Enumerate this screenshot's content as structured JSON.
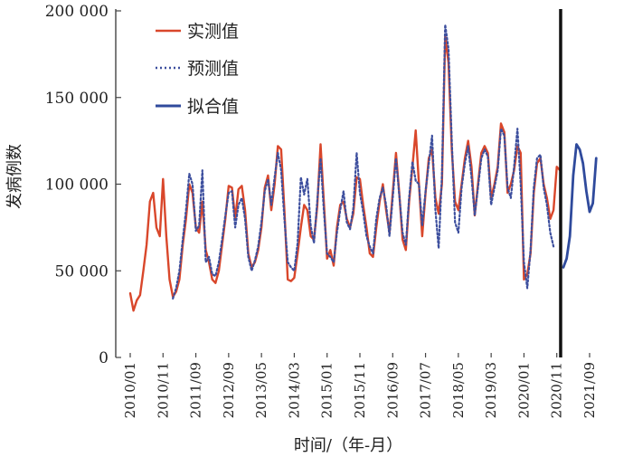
{
  "chart_data": {
    "type": "line",
    "ylabel": "发病例数",
    "xlabel": "时间/（年-月）",
    "ylim": [
      0,
      200000
    ],
    "y_ticks": [
      0,
      50000,
      100000,
      150000,
      200000
    ],
    "y_tick_labels": [
      "0",
      "50 000",
      "100 000",
      "150 000",
      "200 000"
    ],
    "x_tick_labels": [
      "2010/01",
      "2010/11",
      "2011/09",
      "2012/09",
      "2013/05",
      "2014/03",
      "2015/01",
      "2015/11",
      "2016/09",
      "2017/07",
      "2018/05",
      "2019/03",
      "2020/01",
      "2020/11",
      "2021/09"
    ],
    "x_tick_indices": [
      0,
      10,
      20,
      30,
      40,
      50,
      60,
      70,
      80,
      90,
      100,
      110,
      120,
      130,
      140
    ],
    "x_count": 151,
    "divider_index": 132,
    "legend": [
      "实测值",
      "预测值",
      "拟合值"
    ],
    "colors": {
      "actual": "#d9472b",
      "predicted": "#3d4f9e",
      "fitted": "#2f4a9c",
      "divider": "#111111"
    },
    "series": [
      {
        "name": "实测值",
        "style": "solid",
        "points": [
          [
            0,
            37000
          ],
          [
            1,
            27000
          ],
          [
            2,
            33000
          ],
          [
            3,
            36000
          ],
          [
            4,
            50000
          ],
          [
            5,
            65000
          ],
          [
            6,
            90000
          ],
          [
            7,
            95000
          ],
          [
            8,
            75000
          ],
          [
            9,
            70000
          ],
          [
            10,
            103000
          ],
          [
            11,
            70000
          ],
          [
            12,
            45000
          ],
          [
            13,
            35000
          ],
          [
            14,
            38000
          ],
          [
            15,
            45000
          ],
          [
            16,
            65000
          ],
          [
            17,
            80000
          ],
          [
            18,
            100000
          ],
          [
            19,
            95000
          ],
          [
            20,
            75000
          ],
          [
            21,
            72000
          ],
          [
            22,
            90000
          ],
          [
            23,
            62000
          ],
          [
            24,
            55000
          ],
          [
            25,
            45000
          ],
          [
            26,
            43000
          ],
          [
            27,
            50000
          ],
          [
            28,
            65000
          ],
          [
            29,
            80000
          ],
          [
            30,
            99000
          ],
          [
            31,
            98000
          ],
          [
            32,
            80000
          ],
          [
            33,
            97000
          ],
          [
            34,
            99000
          ],
          [
            35,
            85000
          ],
          [
            36,
            60000
          ],
          [
            37,
            52000
          ],
          [
            38,
            55000
          ],
          [
            39,
            62000
          ],
          [
            40,
            75000
          ],
          [
            41,
            98000
          ],
          [
            42,
            105000
          ],
          [
            43,
            85000
          ],
          [
            44,
            100000
          ],
          [
            45,
            122000
          ],
          [
            46,
            120000
          ],
          [
            47,
            85000
          ],
          [
            48,
            45000
          ],
          [
            49,
            44000
          ],
          [
            50,
            46000
          ],
          [
            51,
            60000
          ],
          [
            52,
            75000
          ],
          [
            53,
            88000
          ],
          [
            54,
            85000
          ],
          [
            55,
            70000
          ],
          [
            56,
            68000
          ],
          [
            57,
            87000
          ],
          [
            58,
            123000
          ],
          [
            59,
            90000
          ],
          [
            60,
            57000
          ],
          [
            61,
            62000
          ],
          [
            62,
            53000
          ],
          [
            63,
            75000
          ],
          [
            64,
            88000
          ],
          [
            65,
            90000
          ],
          [
            66,
            80000
          ],
          [
            67,
            75000
          ],
          [
            68,
            83000
          ],
          [
            69,
            104000
          ],
          [
            70,
            103000
          ],
          [
            71,
            88000
          ],
          [
            72,
            75000
          ],
          [
            73,
            60000
          ],
          [
            74,
            58000
          ],
          [
            75,
            75000
          ],
          [
            76,
            90000
          ],
          [
            77,
            100000
          ],
          [
            78,
            85000
          ],
          [
            79,
            72000
          ],
          [
            80,
            95000
          ],
          [
            81,
            118000
          ],
          [
            82,
            95000
          ],
          [
            83,
            68000
          ],
          [
            84,
            62000
          ],
          [
            85,
            90000
          ],
          [
            86,
            110000
          ],
          [
            87,
            131000
          ],
          [
            88,
            100000
          ],
          [
            89,
            70000
          ],
          [
            90,
            95000
          ],
          [
            91,
            115000
          ],
          [
            92,
            120000
          ],
          [
            93,
            92000
          ],
          [
            94,
            83000
          ],
          [
            95,
            100000
          ],
          [
            96,
            185000
          ],
          [
            97,
            170000
          ],
          [
            98,
            120000
          ],
          [
            99,
            90000
          ],
          [
            100,
            85000
          ],
          [
            101,
            100000
          ],
          [
            102,
            115000
          ],
          [
            103,
            125000
          ],
          [
            104,
            110000
          ],
          [
            105,
            82000
          ],
          [
            106,
            100000
          ],
          [
            107,
            118000
          ],
          [
            108,
            122000
          ],
          [
            109,
            118000
          ],
          [
            110,
            92000
          ],
          [
            111,
            100000
          ],
          [
            112,
            110000
          ],
          [
            113,
            135000
          ],
          [
            114,
            130000
          ],
          [
            115,
            95000
          ],
          [
            116,
            100000
          ],
          [
            117,
            108000
          ],
          [
            118,
            122000
          ],
          [
            119,
            118000
          ],
          [
            120,
            45000
          ],
          [
            121,
            48000
          ],
          [
            122,
            60000
          ],
          [
            123,
            95000
          ],
          [
            124,
            112000
          ],
          [
            125,
            115000
          ],
          [
            126,
            100000
          ],
          [
            127,
            92000
          ],
          [
            128,
            80000
          ],
          [
            129,
            85000
          ],
          [
            130,
            110000
          ],
          [
            131,
            108000
          ]
        ]
      },
      {
        "name": "预测值",
        "style": "dotted",
        "points": [
          [
            13,
            34000
          ],
          [
            14,
            40000
          ],
          [
            15,
            50000
          ],
          [
            16,
            68000
          ],
          [
            17,
            85000
          ],
          [
            18,
            106000
          ],
          [
            19,
            100000
          ],
          [
            20,
            73000
          ],
          [
            21,
            76000
          ],
          [
            22,
            108000
          ],
          [
            23,
            55000
          ],
          [
            24,
            58000
          ],
          [
            25,
            48000
          ],
          [
            26,
            47000
          ],
          [
            27,
            55000
          ],
          [
            28,
            68000
          ],
          [
            29,
            82000
          ],
          [
            30,
            95000
          ],
          [
            31,
            96000
          ],
          [
            32,
            75000
          ],
          [
            33,
            88000
          ],
          [
            34,
            92000
          ],
          [
            35,
            80000
          ],
          [
            36,
            58000
          ],
          [
            37,
            50000
          ],
          [
            38,
            56000
          ],
          [
            39,
            64000
          ],
          [
            40,
            78000
          ],
          [
            41,
            96000
          ],
          [
            42,
            103000
          ],
          [
            43,
            88000
          ],
          [
            44,
            104000
          ],
          [
            45,
            118000
          ],
          [
            46,
            108000
          ],
          [
            47,
            80000
          ],
          [
            48,
            55000
          ],
          [
            49,
            52000
          ],
          [
            50,
            50000
          ],
          [
            51,
            66000
          ],
          [
            52,
            104000
          ],
          [
            53,
            94000
          ],
          [
            54,
            103000
          ],
          [
            55,
            76000
          ],
          [
            56,
            66000
          ],
          [
            57,
            90000
          ],
          [
            58,
            115000
          ],
          [
            59,
            85000
          ],
          [
            60,
            60000
          ],
          [
            61,
            58000
          ],
          [
            62,
            55000
          ],
          [
            63,
            72000
          ],
          [
            64,
            85000
          ],
          [
            65,
            96000
          ],
          [
            66,
            78000
          ],
          [
            67,
            74000
          ],
          [
            68,
            86000
          ],
          [
            69,
            118000
          ],
          [
            70,
            95000
          ],
          [
            71,
            84000
          ],
          [
            72,
            70000
          ],
          [
            73,
            64000
          ],
          [
            74,
            60000
          ],
          [
            75,
            80000
          ],
          [
            76,
            92000
          ],
          [
            77,
            98000
          ],
          [
            78,
            88000
          ],
          [
            79,
            70000
          ],
          [
            80,
            92000
          ],
          [
            81,
            115000
          ],
          [
            82,
            94000
          ],
          [
            83,
            72000
          ],
          [
            84,
            65000
          ],
          [
            85,
            92000
          ],
          [
            86,
            113000
          ],
          [
            87,
            102000
          ],
          [
            88,
            100000
          ],
          [
            89,
            76000
          ],
          [
            90,
            96000
          ],
          [
            91,
            112000
          ],
          [
            92,
            128000
          ],
          [
            93,
            85000
          ],
          [
            94,
            63000
          ],
          [
            95,
            105000
          ],
          [
            96,
            192000
          ],
          [
            97,
            178000
          ],
          [
            98,
            125000
          ],
          [
            99,
            78000
          ],
          [
            100,
            72000
          ],
          [
            101,
            98000
          ],
          [
            102,
            112000
          ],
          [
            103,
            122000
          ],
          [
            104,
            104000
          ],
          [
            105,
            82000
          ],
          [
            106,
            98000
          ],
          [
            107,
            115000
          ],
          [
            108,
            120000
          ],
          [
            109,
            116000
          ],
          [
            110,
            88000
          ],
          [
            111,
            98000
          ],
          [
            112,
            108000
          ],
          [
            113,
            132000
          ],
          [
            114,
            128000
          ],
          [
            115,
            98000
          ],
          [
            116,
            92000
          ],
          [
            117,
            110000
          ],
          [
            118,
            132000
          ],
          [
            119,
            100000
          ],
          [
            120,
            55000
          ],
          [
            121,
            40000
          ],
          [
            122,
            62000
          ],
          [
            123,
            98000
          ],
          [
            124,
            115000
          ],
          [
            125,
            117000
          ],
          [
            126,
            98000
          ],
          [
            127,
            88000
          ],
          [
            128,
            72000
          ],
          [
            129,
            64000
          ]
        ]
      },
      {
        "name": "拟合值",
        "style": "solid",
        "points": [
          [
            132,
            52000
          ],
          [
            133,
            57000
          ],
          [
            134,
            70000
          ],
          [
            135,
            105000
          ],
          [
            136,
            123000
          ],
          [
            137,
            120000
          ],
          [
            138,
            112000
          ],
          [
            139,
            96000
          ],
          [
            140,
            84000
          ],
          [
            141,
            89000
          ],
          [
            142,
            115000
          ]
        ]
      }
    ]
  }
}
